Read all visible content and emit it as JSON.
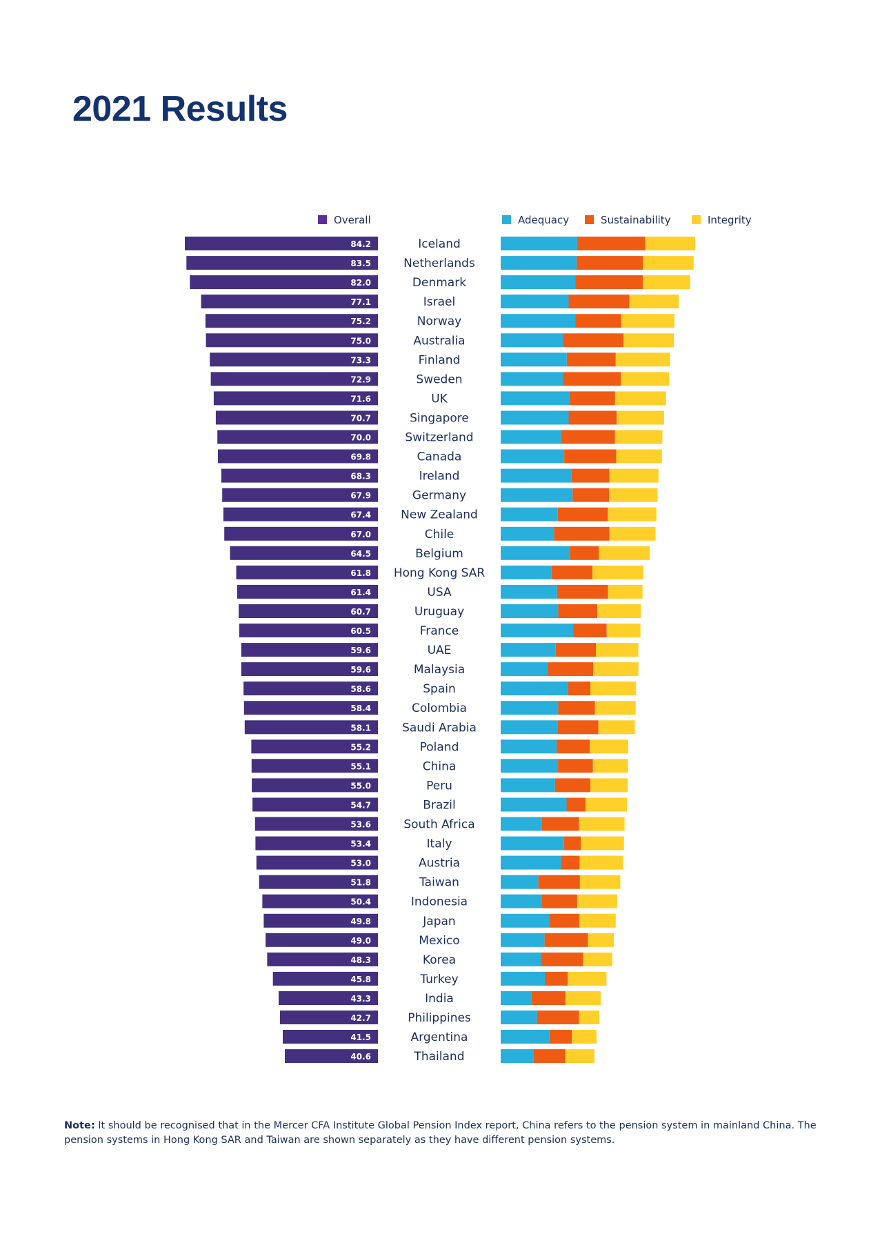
{
  "title": "2021 Results",
  "note": {
    "label": "Note:",
    "text": " It should be recognised that in the Mercer CFA Institute Global Pension Index report, China refers to the pension system in mainland China. The pension systems in Hong Kong SAR and Taiwan are shown separately as they have different pension systems."
  },
  "colors": {
    "overall": "#44307f",
    "overall_legend": "#5e2f96",
    "adequacy": "#28afdc",
    "sustainability": "#ef5b12",
    "integrity": "#ffd02a",
    "text": "#1d2d5c",
    "title": "#14336e"
  },
  "chart_data": [
    {
      "type": "bar",
      "orientation": "horizontal",
      "direction": "right-to-left",
      "title": "",
      "legend": [
        {
          "name": "Overall",
          "position": "top-right"
        }
      ],
      "categories": [
        "Iceland",
        "Netherlands",
        "Denmark",
        "Israel",
        "Norway",
        "Australia",
        "Finland",
        "Sweden",
        "UK",
        "Singapore",
        "Switzerland",
        "Canada",
        "Ireland",
        "Germany",
        "New Zealand",
        "Chile",
        "Belgium",
        "Hong Kong SAR",
        "USA",
        "Uruguay",
        "France",
        "UAE",
        "Malaysia",
        "Spain",
        "Colombia",
        "Saudi Arabia",
        "Poland",
        "China",
        "Peru",
        "Brazil",
        "South Africa",
        "Italy",
        "Austria",
        "Taiwan",
        "Indonesia",
        "Japan",
        "Mexico",
        "Korea",
        "Turkey",
        "India",
        "Philippines",
        "Argentina",
        "Thailand"
      ],
      "series": [
        {
          "name": "Overall",
          "values": [
            84.2,
            83.5,
            82.0,
            77.1,
            75.2,
            75.0,
            73.3,
            72.9,
            71.6,
            70.7,
            70.0,
            69.8,
            68.3,
            67.9,
            67.4,
            67.0,
            64.5,
            61.8,
            61.4,
            60.7,
            60.5,
            59.6,
            59.6,
            58.6,
            58.4,
            58.1,
            55.2,
            55.1,
            55.0,
            54.7,
            53.6,
            53.4,
            53.0,
            51.8,
            50.4,
            49.8,
            49.0,
            48.3,
            45.8,
            43.3,
            42.7,
            41.5,
            40.6
          ]
        }
      ],
      "data_labels": [
        "84.2",
        "83.5",
        "82.0",
        "77.1",
        "75.2",
        "75.0",
        "73.3",
        "72.9",
        "71.6",
        "70.7",
        "70.0",
        "69.8",
        "68.3",
        "67.9",
        "67.4",
        "67.0",
        "64.5",
        "61.8",
        "61.4",
        "60.7",
        "60.5",
        "59.6",
        "59.6",
        "58.6",
        "58.4",
        "58.1",
        "55.2",
        "55.1",
        "55.0",
        "54.7",
        "53.6",
        "53.4",
        "53.0",
        "51.8",
        "50.4",
        "49.8",
        "49.0",
        "48.3",
        "45.8",
        "43.3",
        "42.7",
        "41.5",
        "40.6"
      ],
      "xlim": [
        0,
        100
      ],
      "grid": false
    },
    {
      "type": "bar",
      "stacked": true,
      "orientation": "horizontal",
      "title": "",
      "legend": [
        {
          "name": "Adequacy"
        },
        {
          "name": "Sustainability"
        },
        {
          "name": "Integrity"
        }
      ],
      "legend_position": "top",
      "categories": [
        "Iceland",
        "Netherlands",
        "Denmark",
        "Israel",
        "Norway",
        "Australia",
        "Finland",
        "Sweden",
        "UK",
        "Singapore",
        "Switzerland",
        "Canada",
        "Ireland",
        "Germany",
        "New Zealand",
        "Chile",
        "Belgium",
        "Hong Kong SAR",
        "USA",
        "Uruguay",
        "France",
        "UAE",
        "Malaysia",
        "Spain",
        "Colombia",
        "Saudi Arabia",
        "Poland",
        "China",
        "Peru",
        "Brazil",
        "South Africa",
        "Italy",
        "Austria",
        "Taiwan",
        "Indonesia",
        "Japan",
        "Mexico",
        "Korea",
        "Turkey",
        "India",
        "Philippines",
        "Argentina",
        "Thailand"
      ],
      "series": [
        {
          "name": "Adequacy",
          "values": [
            33.1,
            32.9,
            32.4,
            29.4,
            32.4,
            26.9,
            28.6,
            26.9,
            29.6,
            29.4,
            26.1,
            27.5,
            30.7,
            31.1,
            24.7,
            23.1,
            29.9,
            22.0,
            24.4,
            24.9,
            31.5,
            23.8,
            20.1,
            29.2,
            24.9,
            24.6,
            24.2,
            24.8,
            23.5,
            28.5,
            17.8,
            27.4,
            26.1,
            16.3,
            17.9,
            21.2,
            19.0,
            17.5,
            19.1,
            13.4,
            15.7,
            21.1,
            14.2
          ]
        },
        {
          "name": "Sustainability",
          "values": [
            29.5,
            28.6,
            29.1,
            26.3,
            19.8,
            26.3,
            21.2,
            25.1,
            19.9,
            20.8,
            23.4,
            22.5,
            16.4,
            15.8,
            21.7,
            23.9,
            12.6,
            17.7,
            22.1,
            16.9,
            14.4,
            17.4,
            19.9,
            9.6,
            15.9,
            17.7,
            14.3,
            15.1,
            15.3,
            8.2,
            16.1,
            7.3,
            8.1,
            18.0,
            15.2,
            12.8,
            18.8,
            18.2,
            9.9,
            14.6,
            18.2,
            9.7,
            13.7
          ]
        },
        {
          "name": "Integrity",
          "values": [
            21.6,
            22.0,
            20.5,
            21.4,
            23.0,
            21.8,
            23.5,
            20.9,
            22.1,
            20.5,
            20.5,
            19.8,
            21.2,
            21.0,
            21.0,
            20.0,
            22.0,
            22.1,
            14.9,
            18.9,
            14.6,
            18.4,
            19.6,
            19.8,
            17.6,
            15.8,
            16.7,
            15.2,
            16.2,
            18.0,
            19.7,
            18.7,
            18.8,
            17.5,
            17.3,
            15.8,
            11.2,
            12.6,
            16.8,
            15.3,
            8.8,
            10.7,
            12.7
          ]
        }
      ],
      "xlim": [
        0,
        100
      ],
      "grid": false
    }
  ]
}
